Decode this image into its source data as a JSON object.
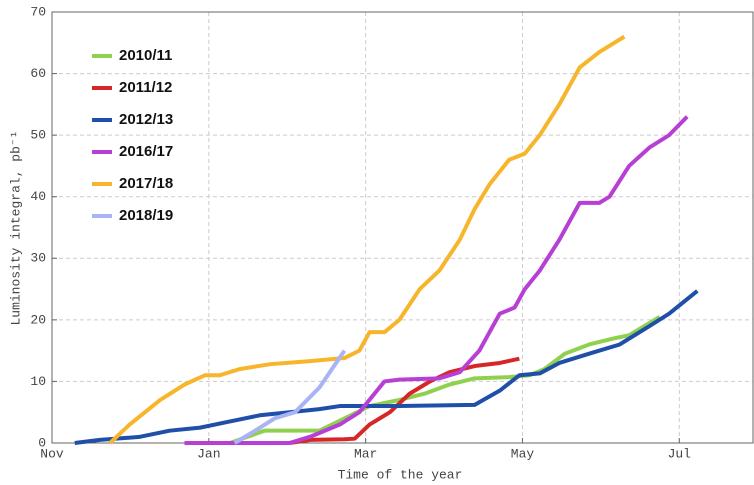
{
  "chart_data": {
    "type": "line",
    "x_label": "Time of the year",
    "y_label": "Luminosity integral, pb⁻¹",
    "xlim": [
      0,
      8.94
    ],
    "xticks": [
      {
        "value": 0,
        "label": "Nov"
      },
      {
        "value": 2,
        "label": "Jan"
      },
      {
        "value": 4,
        "label": "Mar"
      },
      {
        "value": 6,
        "label": "May"
      },
      {
        "value": 8,
        "label": "Jul"
      }
    ],
    "ylim": [
      0,
      70
    ],
    "yticks": [
      0,
      10,
      20,
      30,
      40,
      50,
      60,
      70
    ],
    "grid": true,
    "legend": "upper left",
    "series": [
      {
        "name": "2010/11",
        "color": "#8fd14f",
        "x": [
          2.27,
          2.71,
          3.41,
          3.73,
          4.05,
          4.43,
          4.75,
          5.07,
          5.39,
          5.83,
          6.09,
          6.28,
          6.54,
          6.85,
          7.17,
          7.36,
          7.75
        ],
        "values": [
          0,
          2,
          2,
          4,
          6,
          7,
          8,
          9.5,
          10.5,
          10.7,
          11,
          12,
          14.5,
          16,
          17,
          17.5,
          20.5
        ]
      },
      {
        "name": "2011/12",
        "color": "#d62728",
        "x": [
          3.03,
          3.29,
          3.73,
          3.86,
          4.05,
          4.31,
          4.56,
          4.82,
          5.07,
          5.39,
          5.71,
          5.96
        ],
        "values": [
          0,
          0.5,
          0.6,
          0.7,
          3,
          5,
          8,
          10,
          11.5,
          12.5,
          13,
          13.7
        ]
      },
      {
        "name": "2012/13",
        "color": "#1f4fa8",
        "x": [
          0.29,
          0.61,
          1.12,
          1.5,
          1.89,
          2.27,
          2.65,
          3.03,
          3.41,
          3.67,
          4.43,
          5.39,
          5.71,
          5.96,
          6.22,
          6.47,
          6.85,
          7.24,
          7.62,
          7.87,
          8.23
        ],
        "values": [
          0,
          0.5,
          1,
          2,
          2.5,
          3.5,
          4.5,
          5,
          5.5,
          6,
          6,
          6.2,
          8.5,
          11,
          11.3,
          13,
          14.5,
          16,
          19,
          21,
          24.7
        ]
      },
      {
        "name": "2016/17",
        "color": "#b83fd6",
        "x": [
          1.69,
          3.03,
          3.29,
          3.67,
          3.92,
          4.24,
          4.43,
          4.94,
          5.2,
          5.45,
          5.71,
          5.9,
          6.03,
          6.22,
          6.47,
          6.73,
          6.98,
          7.11,
          7.36,
          7.62,
          7.87,
          8.1
        ],
        "values": [
          0,
          0,
          1,
          3,
          5,
          10,
          10.3,
          10.5,
          11.5,
          15,
          21,
          22,
          25,
          28,
          33,
          39,
          39,
          40,
          45,
          48,
          50,
          53
        ]
      },
      {
        "name": "2017/18",
        "color": "#f7b52c",
        "x": [
          0.74,
          0.99,
          1.38,
          1.69,
          1.95,
          2.14,
          2.39,
          2.78,
          3.29,
          3.73,
          3.92,
          4.05,
          4.24,
          4.43,
          4.69,
          4.94,
          5.2,
          5.39,
          5.58,
          5.83,
          6.03,
          6.22,
          6.47,
          6.73,
          6.98,
          7.3
        ],
        "values": [
          0,
          3,
          7,
          9.5,
          11,
          11,
          12,
          12.8,
          13.3,
          13.8,
          15,
          18,
          18,
          20,
          25,
          28,
          33,
          38,
          42,
          46,
          47,
          50,
          55,
          61,
          63.5,
          66
        ]
      },
      {
        "name": "2018/19",
        "color": "#a9b3f5",
        "x": [
          2.33,
          2.59,
          2.84,
          3.1,
          3.41,
          3.73
        ],
        "values": [
          0,
          2,
          4,
          5,
          9,
          15
        ]
      }
    ]
  }
}
